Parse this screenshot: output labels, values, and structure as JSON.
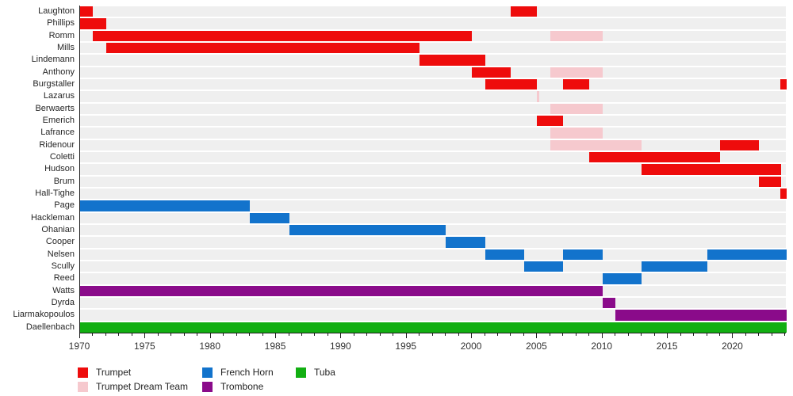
{
  "chart_data": {
    "type": "gantt",
    "x_axis": {
      "min": 1970,
      "max": 2024.1,
      "minor_tick_interval": 1,
      "major_tick_interval": 5,
      "major_tick_labels": [
        "1970",
        "1975",
        "1980",
        "1985",
        "1990",
        "1995",
        "2000",
        "2005",
        "2010",
        "2015",
        "2020"
      ]
    },
    "categories": [
      {
        "label": "Trumpet",
        "color": "#ee0c0c"
      },
      {
        "label": "Trumpet Dream Team",
        "color": "#f6c9ce"
      },
      {
        "label": "French Horn",
        "color": "#1273cc"
      },
      {
        "label": "Trombone",
        "color": "#8a0b8a"
      },
      {
        "label": "Tuba",
        "color": "#12af12"
      }
    ],
    "rows": [
      {
        "name": "Laughton",
        "bars": [
          {
            "start": 1970,
            "end": 1971,
            "category": "Trumpet"
          },
          {
            "start": 2003,
            "end": 2005,
            "category": "Trumpet"
          }
        ]
      },
      {
        "name": "Phillips",
        "bars": [
          {
            "start": 1970,
            "end": 1972,
            "category": "Trumpet"
          }
        ]
      },
      {
        "name": "Romm",
        "bars": [
          {
            "start": 1971,
            "end": 2000,
            "category": "Trumpet"
          },
          {
            "start": 2006,
            "end": 2010,
            "category": "Trumpet Dream Team"
          }
        ]
      },
      {
        "name": "Mills",
        "bars": [
          {
            "start": 1972,
            "end": 1996,
            "category": "Trumpet"
          }
        ]
      },
      {
        "name": "Lindemann",
        "bars": [
          {
            "start": 1996,
            "end": 2001,
            "category": "Trumpet"
          }
        ]
      },
      {
        "name": "Anthony",
        "bars": [
          {
            "start": 2000,
            "end": 2003,
            "category": "Trumpet"
          },
          {
            "start": 2006,
            "end": 2010,
            "category": "Trumpet Dream Team"
          }
        ]
      },
      {
        "name": "Burgstaller",
        "bars": [
          {
            "start": 2001,
            "end": 2005,
            "category": "Trumpet"
          },
          {
            "start": 2007,
            "end": 2009,
            "category": "Trumpet"
          },
          {
            "start": 2023.6,
            "end": 2024.1,
            "category": "Trumpet"
          }
        ]
      },
      {
        "name": "Lazarus",
        "bars": [
          {
            "start": 2005,
            "end": 2005.15,
            "category": "Trumpet Dream Team"
          }
        ]
      },
      {
        "name": "Berwaerts",
        "bars": [
          {
            "start": 2006,
            "end": 2010,
            "category": "Trumpet Dream Team"
          }
        ]
      },
      {
        "name": "Emerich",
        "bars": [
          {
            "start": 2005,
            "end": 2007,
            "category": "Trumpet"
          }
        ]
      },
      {
        "name": "Lafrance",
        "bars": [
          {
            "start": 2006,
            "end": 2010,
            "category": "Trumpet Dream Team"
          }
        ]
      },
      {
        "name": "Ridenour",
        "bars": [
          {
            "start": 2006,
            "end": 2013,
            "category": "Trumpet Dream Team"
          },
          {
            "start": 2019,
            "end": 2022,
            "category": "Trumpet"
          }
        ]
      },
      {
        "name": "Coletti",
        "bars": [
          {
            "start": 2009,
            "end": 2019,
            "category": "Trumpet"
          }
        ]
      },
      {
        "name": "Hudson",
        "bars": [
          {
            "start": 2013,
            "end": 2023.7,
            "category": "Trumpet"
          }
        ]
      },
      {
        "name": "Brum",
        "bars": [
          {
            "start": 2022,
            "end": 2023.7,
            "category": "Trumpet"
          }
        ]
      },
      {
        "name": "Hall-Tighe",
        "bars": [
          {
            "start": 2023.6,
            "end": 2024.1,
            "category": "Trumpet"
          }
        ]
      },
      {
        "name": "Page",
        "bars": [
          {
            "start": 1970,
            "end": 1983,
            "category": "French Horn"
          }
        ]
      },
      {
        "name": "Hackleman",
        "bars": [
          {
            "start": 1983,
            "end": 1986,
            "category": "French Horn"
          }
        ]
      },
      {
        "name": "Ohanian",
        "bars": [
          {
            "start": 1986,
            "end": 1998,
            "category": "French Horn"
          }
        ]
      },
      {
        "name": "Cooper",
        "bars": [
          {
            "start": 1998,
            "end": 2001,
            "category": "French Horn"
          }
        ]
      },
      {
        "name": "Nelsen",
        "bars": [
          {
            "start": 2001,
            "end": 2004,
            "category": "French Horn"
          },
          {
            "start": 2007,
            "end": 2010,
            "category": "French Horn"
          },
          {
            "start": 2018,
            "end": 2024.1,
            "category": "French Horn"
          }
        ]
      },
      {
        "name": "Scully",
        "bars": [
          {
            "start": 2004,
            "end": 2007,
            "category": "French Horn"
          },
          {
            "start": 2013,
            "end": 2018,
            "category": "French Horn"
          }
        ]
      },
      {
        "name": "Reed",
        "bars": [
          {
            "start": 2010,
            "end": 2013,
            "category": "French Horn"
          }
        ]
      },
      {
        "name": "Watts",
        "bars": [
          {
            "start": 1970,
            "end": 2010,
            "category": "Trombone"
          }
        ]
      },
      {
        "name": "Dyrda",
        "bars": [
          {
            "start": 2010,
            "end": 2011,
            "category": "Trombone"
          }
        ]
      },
      {
        "name": "Liarmakopoulos",
        "bars": [
          {
            "start": 2011,
            "end": 2024.1,
            "category": "Trombone"
          }
        ]
      },
      {
        "name": "Daellenbach",
        "bars": [
          {
            "start": 1970,
            "end": 2024.1,
            "category": "Tuba"
          }
        ]
      }
    ],
    "legend": {
      "position": "bottom-left",
      "columns": [
        [
          "Trumpet",
          "Trumpet Dream Team"
        ],
        [
          "French Horn",
          "Trombone"
        ],
        [
          "Tuba"
        ]
      ]
    },
    "style": {
      "row_band_color": "#efefef",
      "axis_color": "#1a1a1a",
      "label_color": "#262626"
    }
  }
}
